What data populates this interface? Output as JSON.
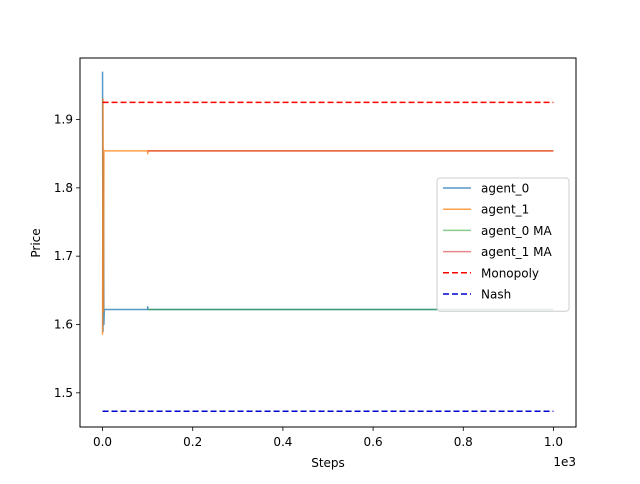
{
  "chart_data": {
    "type": "line",
    "title": "",
    "xlabel": "Steps",
    "ylabel": "Price",
    "x_scale_label": "1e3",
    "xlim": [
      -0.05,
      1.05
    ],
    "ylim": [
      1.45,
      1.99
    ],
    "x_ticks": [
      {
        "value": 0.0,
        "label": "0.0"
      },
      {
        "value": 0.2,
        "label": "0.2"
      },
      {
        "value": 0.4,
        "label": "0.4"
      },
      {
        "value": 0.6,
        "label": "0.6"
      },
      {
        "value": 0.8,
        "label": "0.8"
      },
      {
        "value": 1.0,
        "label": "1.0"
      }
    ],
    "y_ticks": [
      {
        "value": 1.5,
        "label": "1.5"
      },
      {
        "value": 1.6,
        "label": "1.6"
      },
      {
        "value": 1.7,
        "label": "1.7"
      },
      {
        "value": 1.8,
        "label": "1.8"
      },
      {
        "value": 1.9,
        "label": "1.9"
      }
    ],
    "series": [
      {
        "name": "agent_0",
        "color": "#1f77b4",
        "opacity": 0.75,
        "style": "solid",
        "points": [
          [
            0.0,
            1.97
          ],
          [
            0.001,
            1.59
          ],
          [
            0.002,
            1.85
          ],
          [
            0.003,
            1.6
          ],
          [
            0.004,
            1.622
          ],
          [
            0.1,
            1.622
          ],
          [
            0.1,
            1.626
          ],
          [
            0.101,
            1.622
          ],
          [
            1.0,
            1.622
          ]
        ]
      },
      {
        "name": "agent_1",
        "color": "#ff7f0e",
        "opacity": 0.75,
        "style": "solid",
        "points": [
          [
            0.0,
            1.585
          ],
          [
            0.001,
            1.93
          ],
          [
            0.002,
            1.62
          ],
          [
            0.003,
            1.855
          ],
          [
            0.004,
            1.854
          ],
          [
            0.1,
            1.854
          ],
          [
            0.1,
            1.85
          ],
          [
            0.101,
            1.854
          ],
          [
            1.0,
            1.854
          ]
        ]
      },
      {
        "name": "agent_0 MA",
        "color": "#2ca02c",
        "opacity": 0.55,
        "style": "solid",
        "points": [
          [
            0.1,
            1.622
          ],
          [
            1.0,
            1.622
          ]
        ]
      },
      {
        "name": "agent_1 MA",
        "color": "#d62728",
        "opacity": 0.55,
        "style": "solid",
        "points": [
          [
            0.1,
            1.854
          ],
          [
            1.0,
            1.854
          ]
        ]
      },
      {
        "name": "Monopoly",
        "color": "#ff0000",
        "opacity": 1,
        "style": "dashed",
        "points": [
          [
            0.0,
            1.925
          ],
          [
            1.0,
            1.925
          ]
        ]
      },
      {
        "name": "Nash",
        "color": "#0000cd",
        "opacity": 1,
        "style": "dashed",
        "points": [
          [
            0.0,
            1.473
          ],
          [
            1.0,
            1.473
          ]
        ]
      }
    ],
    "legend_position": "center-right"
  }
}
